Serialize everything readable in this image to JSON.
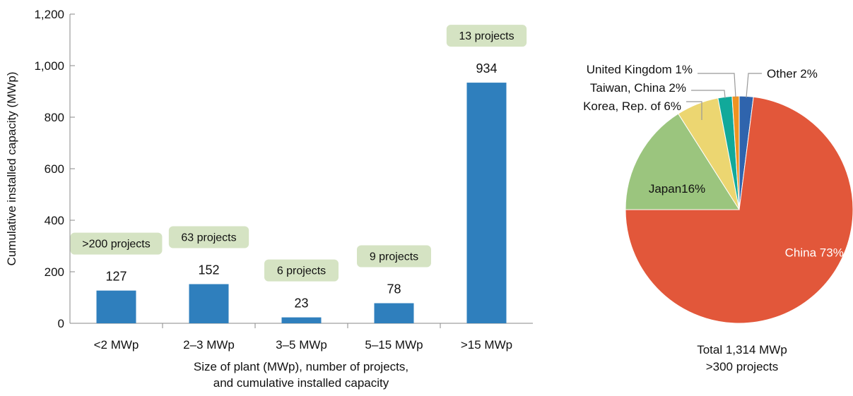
{
  "chart_data": [
    {
      "type": "bar",
      "categories": [
        "<2 MWp",
        "2–3 MWp",
        "3–5 MWp",
        "5–15 MWp",
        ">15 MWp"
      ],
      "values": [
        127,
        152,
        23,
        78,
        934
      ],
      "value_labels": [
        "127",
        "152",
        "23",
        "78",
        "934"
      ],
      "project_labels": [
        ">200 projects",
        "63 projects",
        "6 projects",
        "9 projects",
        "13 projects"
      ],
      "ylabel": "Cumulative installed capacity (MWp)",
      "xlabel_line1": "Size of plant (MWp), number of projects,",
      "xlabel_line2": "and cumulative installed capacity",
      "ylim": [
        0,
        1200
      ],
      "yticks": [
        0,
        200,
        400,
        600,
        800,
        1000,
        1200
      ],
      "ytick_labels": [
        "0",
        "200",
        "400",
        "600",
        "800",
        "1,000",
        "1,200"
      ],
      "bar_color": "#2f7fbd",
      "project_label_color": "#d5e3c3",
      "grid": false
    },
    {
      "type": "pie",
      "slices": [
        {
          "label": "Other 2%",
          "value": 2,
          "color": "#2f64ad"
        },
        {
          "label": "China 73%",
          "value": 73,
          "color": "#e2573a"
        },
        {
          "label": "Japan16%",
          "value": 16,
          "color": "#9bc57e"
        },
        {
          "label": "Korea, Rep. of 6%",
          "value": 6,
          "color": "#ecd671"
        },
        {
          "label": "Taiwan, China 2%",
          "value": 2,
          "color": "#11a99a"
        },
        {
          "label": "United Kingdom 1%",
          "value": 1,
          "color": "#ef9321"
        }
      ],
      "caption_line1": "Total 1,314 MWp",
      "caption_line2": ">300 projects"
    }
  ]
}
